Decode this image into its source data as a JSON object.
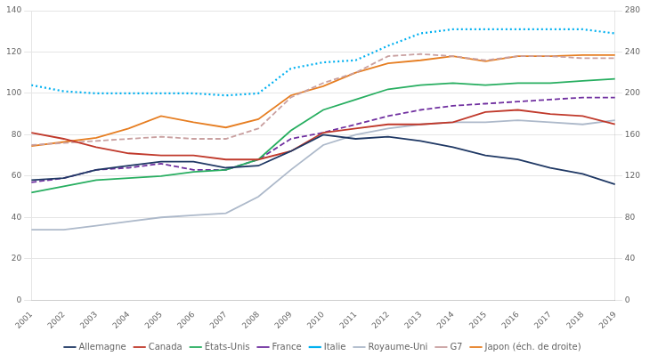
{
  "chart_data": {
    "type": "line",
    "x": [
      2001,
      2002,
      2003,
      2004,
      2005,
      2006,
      2007,
      2008,
      2009,
      2010,
      2011,
      2012,
      2013,
      2014,
      2015,
      2016,
      2017,
      2018,
      2019
    ],
    "xlim": [
      2001,
      2019
    ],
    "xticks": [
      2001,
      2002,
      2003,
      2004,
      2005,
      2006,
      2007,
      2008,
      2009,
      2010,
      2011,
      2012,
      2013,
      2014,
      2015,
      2016,
      2017,
      2018,
      2019
    ],
    "ylim": [
      0,
      140
    ],
    "yticks": [
      0,
      20,
      40,
      60,
      80,
      100,
      120,
      140
    ],
    "y2lim": [
      0,
      280
    ],
    "y2ticks": [
      0,
      40,
      80,
      120,
      160,
      200,
      240,
      280
    ],
    "grid": true,
    "legend": "bottom",
    "series": [
      {
        "name": "Allemagne",
        "color": "#1f3864",
        "line_style": "solid",
        "values": [
          58,
          59,
          63,
          65,
          67,
          67,
          64,
          65,
          72,
          80,
          78,
          79,
          77,
          74,
          70,
          68,
          64,
          61,
          56
        ]
      },
      {
        "name": "Canada",
        "color": "#c0392b",
        "line_style": "solid",
        "values": [
          81,
          78,
          74,
          71,
          70,
          70,
          68,
          68,
          72,
          81,
          83,
          85,
          85,
          86,
          91,
          92,
          90,
          89,
          85
        ]
      },
      {
        "name": "États-Unis",
        "color": "#27ae60",
        "line_style": "solid",
        "values": [
          52,
          55,
          58,
          59,
          60,
          62,
          63,
          68,
          82,
          92,
          97,
          102,
          104,
          105,
          104,
          105,
          105,
          106,
          107
        ]
      },
      {
        "name": "France",
        "color": "#7030a0",
        "line_style": "dashed",
        "values": [
          57,
          59,
          63,
          64,
          66,
          63,
          63,
          68,
          78,
          81,
          85,
          89,
          92,
          94,
          95,
          96,
          97,
          98,
          98
        ]
      },
      {
        "name": "Italie",
        "color": "#00b0f0",
        "line_style": "dotted",
        "values": [
          104,
          101,
          100,
          100,
          100,
          100,
          99,
          100,
          112,
          115,
          116,
          123,
          129,
          131,
          131,
          131,
          131,
          131,
          129
        ]
      },
      {
        "name": "Royaume-Uni",
        "color": "#adb9ca",
        "line_style": "solid",
        "values": [
          34,
          34,
          36,
          38,
          40,
          41,
          42,
          50,
          63,
          75,
          80,
          83,
          85,
          86,
          86,
          87,
          86,
          85,
          87
        ]
      },
      {
        "name": "G7",
        "color": "#c9a0a0",
        "line_style": "dashed",
        "values": [
          75,
          76,
          77,
          78,
          79,
          78,
          78,
          83,
          98,
          105,
          110,
          118,
          119,
          118,
          116,
          118,
          118,
          117,
          117
        ]
      },
      {
        "name": "Japon (éch. de droite)",
        "color": "#e67e22",
        "line_style": "solid",
        "axis": "y2",
        "values": [
          149,
          153,
          157,
          166,
          178,
          172,
          167,
          175,
          198,
          207,
          220,
          229,
          232,
          236,
          231,
          236,
          236,
          237,
          237
        ]
      }
    ]
  }
}
